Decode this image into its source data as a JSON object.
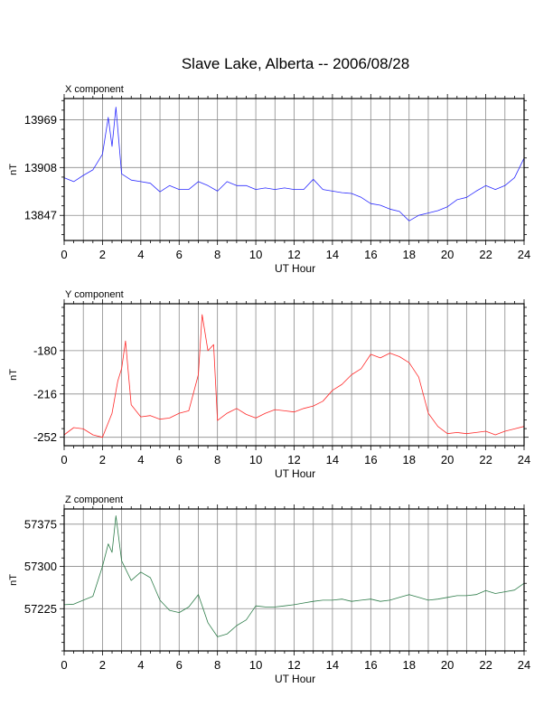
{
  "title": "Slave Lake, Alberta -- 2006/08/28",
  "colors": {
    "x": "#2a2aff",
    "y": "#ff2a2a",
    "z": "#2e7d4a",
    "grid": "#8a8a8a",
    "frame": "#000000"
  },
  "chart_data": [
    {
      "type": "line",
      "panel_label": "X component",
      "xlabel": "UT Hour",
      "ylabel": "nT",
      "xlim": [
        0,
        24
      ],
      "ylim": [
        13815,
        13996
      ],
      "x_ticks": [
        0,
        2,
        4,
        6,
        8,
        10,
        12,
        14,
        16,
        18,
        20,
        22,
        24
      ],
      "y_ticks": [
        13847,
        13908,
        13969
      ],
      "series": [
        {
          "color_key": "x",
          "x": [
            0,
            0.5,
            1,
            1.5,
            2,
            2.3,
            2.5,
            2.7,
            3,
            3.5,
            4,
            4.5,
            5,
            5.5,
            6,
            6.5,
            7,
            7.5,
            8,
            8.5,
            9,
            9.5,
            10,
            10.5,
            11,
            11.5,
            12,
            12.5,
            13,
            13.5,
            14,
            14.5,
            15,
            15.5,
            16,
            16.5,
            17,
            17.5,
            18,
            18.5,
            19,
            19.5,
            20,
            20.5,
            21,
            21.5,
            22,
            22.5,
            23,
            23.5,
            24
          ],
          "y": [
            13895,
            13890,
            13898,
            13905,
            13925,
            13972,
            13935,
            13985,
            13900,
            13892,
            13890,
            13888,
            13877,
            13885,
            13880,
            13880,
            13890,
            13885,
            13878,
            13890,
            13885,
            13885,
            13880,
            13882,
            13880,
            13882,
            13880,
            13880,
            13893,
            13880,
            13878,
            13876,
            13875,
            13870,
            13862,
            13860,
            13855,
            13852,
            13840,
            13847,
            13850,
            13853,
            13858,
            13867,
            13870,
            13878,
            13885,
            13880,
            13885,
            13895,
            13920
          ]
        }
      ]
    },
    {
      "type": "line",
      "panel_label": "Y component",
      "xlabel": "UT Hour",
      "ylabel": "nT",
      "xlim": [
        0,
        24
      ],
      "ylim": [
        -259,
        -141
      ],
      "x_ticks": [
        0,
        2,
        4,
        6,
        8,
        10,
        12,
        14,
        16,
        18,
        20,
        22,
        24
      ],
      "y_ticks": [
        -252,
        -216,
        -180
      ],
      "series": [
        {
          "color_key": "y",
          "x": [
            0,
            0.5,
            1,
            1.5,
            2,
            2.5,
            2.8,
            3,
            3.2,
            3.5,
            4,
            4.5,
            5,
            5.5,
            6,
            6.5,
            7,
            7.2,
            7.5,
            7.8,
            8,
            8.5,
            9,
            9.5,
            10,
            10.5,
            11,
            11.5,
            12,
            12.5,
            13,
            13.5,
            14,
            14.5,
            15,
            15.5,
            16,
            16.5,
            17,
            17.5,
            18,
            18.5,
            19,
            19.5,
            20,
            20.5,
            21,
            21.5,
            22,
            22.5,
            23,
            23.5,
            24
          ],
          "y": [
            -250,
            -244,
            -245,
            -250,
            -252,
            -232,
            -205,
            -195,
            -172,
            -225,
            -235,
            -234,
            -237,
            -236,
            -232,
            -230,
            -200,
            -150,
            -180,
            -175,
            -238,
            -232,
            -228,
            -233,
            -236,
            -232,
            -229,
            -230,
            -231,
            -228,
            -226,
            -222,
            -213,
            -208,
            -200,
            -195,
            -183,
            -186,
            -182,
            -185,
            -190,
            -202,
            -232,
            -243,
            -249,
            -248,
            -249,
            -248,
            -247,
            -250,
            -247,
            -245,
            -243
          ]
        }
      ]
    },
    {
      "type": "line",
      "panel_label": "Z component",
      "xlabel": "UT Hour",
      "ylabel": "nT",
      "xlim": [
        0,
        24
      ],
      "ylim": [
        57150,
        57402
      ],
      "x_ticks": [
        0,
        2,
        4,
        6,
        8,
        10,
        12,
        14,
        16,
        18,
        20,
        22,
        24
      ],
      "y_ticks": [
        57225,
        57300,
        57375
      ],
      "series": [
        {
          "color_key": "z",
          "x": [
            0,
            0.5,
            1,
            1.5,
            2,
            2.3,
            2.5,
            2.7,
            3,
            3.5,
            4,
            4.5,
            5,
            5.5,
            6,
            6.5,
            7,
            7.5,
            8,
            8.5,
            9,
            9.5,
            10,
            10.5,
            11,
            11.5,
            12,
            12.5,
            13,
            13.5,
            14,
            14.5,
            15,
            15.5,
            16,
            16.5,
            17,
            17.5,
            18,
            18.5,
            19,
            19.5,
            20,
            20.5,
            21,
            21.5,
            22,
            22.5,
            23,
            23.5,
            24
          ],
          "y": [
            57232,
            57233,
            57240,
            57247,
            57300,
            57340,
            57325,
            57390,
            57310,
            57275,
            57290,
            57280,
            57240,
            57222,
            57218,
            57228,
            57250,
            57200,
            57175,
            57180,
            57195,
            57205,
            57230,
            57228,
            57228,
            57230,
            57232,
            57235,
            57238,
            57240,
            57240,
            57242,
            57238,
            57240,
            57242,
            57238,
            57240,
            57245,
            57250,
            57245,
            57240,
            57242,
            57245,
            57248,
            57248,
            57250,
            57257,
            57252,
            57255,
            57258,
            57270
          ]
        }
      ]
    }
  ]
}
